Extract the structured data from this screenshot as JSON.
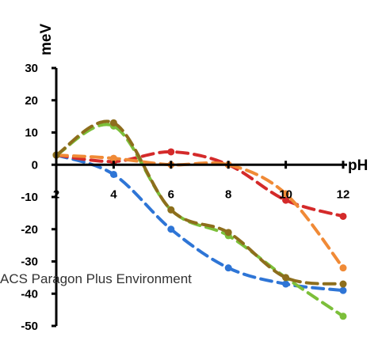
{
  "chart_data": {
    "type": "line",
    "xlabel": "pH",
    "ylabel": "meV",
    "xlim": [
      2,
      12
    ],
    "ylim": [
      -50,
      30
    ],
    "x_ticks": [
      2,
      4,
      6,
      8,
      10,
      12
    ],
    "y_ticks": [
      30,
      20,
      10,
      0,
      -10,
      -20,
      -30,
      -40,
      -50
    ],
    "grid": false,
    "legend": "none",
    "series": [
      {
        "color": "#2e75d6",
        "x": [
          2,
          4,
          6,
          8,
          10,
          12
        ],
        "y": [
          3,
          -3,
          -20,
          -32,
          -37,
          -39
        ]
      },
      {
        "color": "#d42a2a",
        "x": [
          2,
          4,
          6,
          8,
          10,
          12
        ],
        "y": [
          3,
          1,
          4,
          0,
          -11,
          -16
        ]
      },
      {
        "color": "#f08a36",
        "x": [
          2,
          4,
          6,
          8,
          10,
          12
        ],
        "y": [
          3,
          2,
          0,
          0,
          -9,
          -32
        ]
      },
      {
        "color": "#7cbf3a",
        "x": [
          2,
          4,
          6,
          8,
          10,
          12
        ],
        "y": [
          3,
          12,
          -14,
          -22,
          -35,
          -47
        ]
      },
      {
        "color": "#8d6e1c",
        "x": [
          2,
          4,
          6,
          8,
          10,
          12
        ],
        "y": [
          3,
          13,
          -14,
          -21,
          -35,
          -37
        ]
      }
    ]
  },
  "watermark": "ACS Paragon Plus Environment"
}
